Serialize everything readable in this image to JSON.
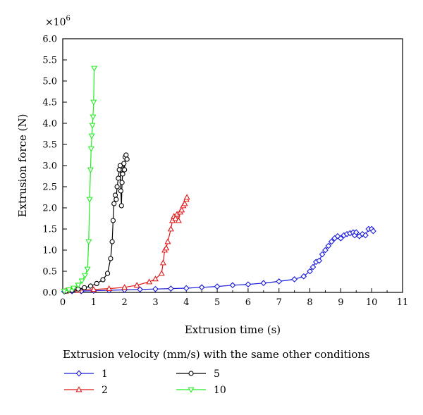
{
  "chart_data": {
    "type": "line",
    "xlabel": "Extrusion time (s)",
    "ylabel": "Extrusion force (N)",
    "y_multiplier": {
      "base": "×10",
      "exponent": "6"
    },
    "xlim": [
      0,
      11
    ],
    "ylim": [
      0,
      6.0
    ],
    "xticks": [
      "0",
      "1",
      "2",
      "3",
      "4",
      "5",
      "6",
      "7",
      "8",
      "9",
      "10",
      "11"
    ],
    "yticks": [
      "0.0",
      "0.5",
      "1.0",
      "1.5",
      "2.0",
      "2.5",
      "3.0",
      "3.5",
      "4.0",
      "4.5",
      "5.0",
      "5.5",
      "6.0"
    ],
    "legend_title": "Extrusion velocity (mm/s) with the same other conditions",
    "legend_placement": "bottom",
    "series": [
      {
        "name": "1",
        "color": "#1a1adc",
        "marker": "diamond",
        "x": [
          0.05,
          0.3,
          0.6,
          1.0,
          1.5,
          2.0,
          2.5,
          3.0,
          3.5,
          4.0,
          4.5,
          5.0,
          5.5,
          6.0,
          6.5,
          7.0,
          7.5,
          7.8,
          8.0,
          8.1,
          8.2,
          8.3,
          8.4,
          8.5,
          8.6,
          8.7,
          8.8,
          8.9,
          9.0,
          9.1,
          9.2,
          9.3,
          9.4,
          9.45,
          9.5,
          9.6,
          9.7,
          9.8,
          9.9,
          10.0,
          10.05
        ],
        "y": [
          0.02,
          0.03,
          0.03,
          0.04,
          0.05,
          0.06,
          0.07,
          0.08,
          0.09,
          0.1,
          0.12,
          0.14,
          0.17,
          0.19,
          0.22,
          0.26,
          0.31,
          0.38,
          0.5,
          0.6,
          0.72,
          0.75,
          0.9,
          1.0,
          1.1,
          1.2,
          1.28,
          1.33,
          1.28,
          1.35,
          1.38,
          1.4,
          1.42,
          1.35,
          1.42,
          1.33,
          1.38,
          1.35,
          1.5,
          1.5,
          1.45
        ]
      },
      {
        "name": "2",
        "color": "#e01818",
        "marker": "triangle-up",
        "x": [
          0.1,
          0.5,
          1.0,
          1.5,
          2.0,
          2.4,
          2.8,
          3.0,
          3.2,
          3.25,
          3.3,
          3.35,
          3.4,
          3.5,
          3.55,
          3.6,
          3.65,
          3.7,
          3.75,
          3.8,
          3.85,
          3.9,
          3.95,
          4.0,
          4.02
        ],
        "y": [
          0.03,
          0.05,
          0.07,
          0.09,
          0.12,
          0.17,
          0.25,
          0.32,
          0.45,
          0.7,
          1.0,
          1.05,
          1.2,
          1.5,
          1.7,
          1.8,
          1.75,
          1.85,
          1.7,
          1.9,
          1.95,
          2.05,
          2.1,
          2.2,
          2.25
        ]
      },
      {
        "name": "5",
        "color": "#000000",
        "marker": "circle",
        "x": [
          0.1,
          0.3,
          0.5,
          0.7,
          0.9,
          1.1,
          1.3,
          1.45,
          1.55,
          1.6,
          1.63,
          1.66,
          1.7,
          1.73,
          1.76,
          1.8,
          1.83,
          1.86,
          1.88,
          1.9,
          1.92,
          1.94,
          1.96,
          1.98,
          2.0,
          2.02,
          2.05,
          2.08
        ],
        "y": [
          0.03,
          0.05,
          0.08,
          0.11,
          0.15,
          0.21,
          0.3,
          0.45,
          0.8,
          1.2,
          1.7,
          2.1,
          2.3,
          2.2,
          2.5,
          2.7,
          2.9,
          3.0,
          2.4,
          2.05,
          2.6,
          2.8,
          2.9,
          3.05,
          2.9,
          3.2,
          3.25,
          3.15
        ]
      },
      {
        "name": "10",
        "color": "#22ee22",
        "marker": "triangle-down",
        "x": [
          0.05,
          0.2,
          0.35,
          0.5,
          0.62,
          0.72,
          0.8,
          0.84,
          0.87,
          0.9,
          0.92,
          0.94,
          0.96,
          0.98,
          1.0,
          1.02
        ],
        "y": [
          0.03,
          0.06,
          0.1,
          0.17,
          0.27,
          0.4,
          0.55,
          1.2,
          2.2,
          2.9,
          3.4,
          3.7,
          3.95,
          4.15,
          4.5,
          5.3
        ]
      }
    ]
  }
}
